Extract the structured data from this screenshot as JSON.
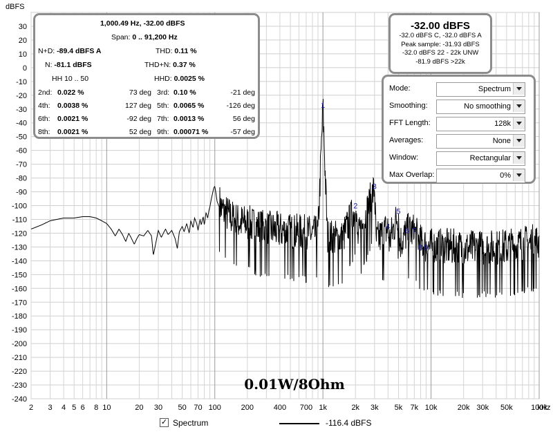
{
  "chart_data": {
    "type": "line",
    "ylabel": "dBFS",
    "xunit_label": "kHz",
    "xscale": "log",
    "xlim": [
      2,
      100000
    ],
    "ylim": [
      -240,
      40
    ],
    "yticks": [
      30,
      20,
      10,
      0,
      -10,
      -20,
      -30,
      -40,
      -50,
      -60,
      -70,
      -80,
      -90,
      -100,
      -110,
      -120,
      -130,
      -140,
      -150,
      -160,
      -170,
      -180,
      -190,
      -200,
      -210,
      -220,
      -230,
      -240
    ],
    "ytick_labels": [
      "30",
      "20",
      "10",
      "0",
      "-10",
      "-20",
      "-30",
      "-40",
      "-50",
      "-60",
      "-70",
      "-80",
      "-90",
      "-100",
      "-110",
      "-120",
      "-130",
      "-140",
      "-150",
      "-160",
      "-170",
      "-180",
      "-190",
      "-200",
      "-210",
      "-220",
      "-230",
      "-240"
    ],
    "xticks": [
      2,
      3,
      4,
      5,
      6,
      8,
      10,
      20,
      30,
      50,
      70,
      100,
      200,
      400,
      700,
      1000,
      2000,
      3000,
      5000,
      7000,
      10000,
      20000,
      30000,
      50000,
      100000
    ],
    "xtick_labels": [
      "2",
      "3",
      "4",
      "5",
      "6",
      "8",
      "10",
      "20",
      "30",
      "50",
      "70",
      "100",
      "200",
      "400",
      "700",
      "1k",
      "2k",
      "3k",
      "5k",
      "7k",
      "10k",
      "20k",
      "30k",
      "50k",
      "100k"
    ],
    "annotation": "0.01W/8Ohm",
    "grid": true,
    "series": [
      {
        "name": "Spectrum",
        "color": "#000000",
        "points": [
          [
            2,
            -117
          ],
          [
            2.5,
            -114
          ],
          [
            3,
            -111
          ],
          [
            4,
            -109
          ],
          [
            5,
            -109
          ],
          [
            6,
            -108
          ],
          [
            7,
            -108
          ],
          [
            8,
            -109
          ],
          [
            9,
            -111
          ],
          [
            10,
            -113
          ],
          [
            11,
            -117
          ],
          [
            12,
            -122
          ],
          [
            13,
            -117
          ],
          [
            14,
            -121
          ],
          [
            15,
            -126
          ],
          [
            16,
            -120
          ],
          [
            17,
            -124
          ],
          [
            18,
            -128
          ],
          [
            19,
            -124
          ],
          [
            20,
            -121
          ],
          [
            22,
            -122
          ],
          [
            24,
            -118
          ],
          [
            26,
            -122
          ],
          [
            27,
            -136
          ],
          [
            28,
            -130
          ],
          [
            30,
            -118
          ],
          [
            32,
            -123
          ],
          [
            35,
            -117
          ],
          [
            37,
            -121
          ],
          [
            40,
            -118
          ],
          [
            43,
            -124
          ],
          [
            45,
            -131
          ],
          [
            47,
            -119
          ],
          [
            50,
            -115
          ],
          [
            52,
            -119
          ],
          [
            55,
            -113
          ],
          [
            58,
            -120
          ],
          [
            60,
            -111
          ],
          [
            63,
            -116
          ],
          [
            65,
            -109
          ],
          [
            68,
            -113
          ],
          [
            70,
            -118
          ],
          [
            73,
            -110
          ],
          [
            75,
            -114
          ],
          [
            78,
            -108
          ],
          [
            80,
            -114
          ],
          [
            83,
            -105
          ],
          [
            86,
            -109
          ],
          [
            88,
            -104
          ],
          [
            90,
            -101
          ],
          [
            93,
            -95
          ],
          [
            96,
            -90
          ],
          [
            98,
            -87
          ],
          [
            100,
            -86
          ],
          [
            102,
            -90
          ],
          [
            105,
            -97
          ],
          [
            110,
            -101
          ],
          [
            115,
            -106
          ],
          [
            120,
            -108
          ],
          [
            130,
            -110
          ],
          [
            140,
            -112
          ],
          [
            150,
            -114
          ],
          [
            170,
            -116
          ],
          [
            200,
            -117
          ],
          [
            250,
            -119
          ],
          [
            300,
            -121
          ],
          [
            400,
            -122
          ],
          [
            500,
            -123
          ],
          [
            700,
            -124
          ],
          [
            900,
            -125
          ],
          [
            1000,
            -32
          ],
          [
            1100,
            -127
          ],
          [
            1500,
            -128
          ],
          [
            2000,
            -106
          ],
          [
            2100,
            -129
          ],
          [
            3000,
            -91
          ],
          [
            3100,
            -130
          ],
          [
            4000,
            -120
          ],
          [
            4100,
            -130
          ],
          [
            5000,
            -109
          ],
          [
            5100,
            -131
          ],
          [
            6000,
            -123
          ],
          [
            7000,
            -123
          ],
          [
            8000,
            -131
          ],
          [
            9000,
            -133
          ],
          [
            10000,
            -134
          ],
          [
            15000,
            -134
          ],
          [
            20000,
            -135
          ],
          [
            30000,
            -135
          ],
          [
            40000,
            -135
          ],
          [
            50000,
            -134
          ],
          [
            70000,
            -132
          ],
          [
            100000,
            -130
          ]
        ],
        "noise_from_hz": 110,
        "noise_depth_db": 28
      }
    ],
    "harmonic_markers": [
      {
        "label": "1",
        "x": 1000,
        "y": -29
      },
      {
        "label": "2",
        "x": 2000,
        "y": -102
      },
      {
        "label": "3",
        "x": 3000,
        "y": -88
      },
      {
        "label": "4",
        "x": 4000,
        "y": -117
      },
      {
        "label": "5",
        "x": 5000,
        "y": -106
      },
      {
        "label": "6",
        "x": 6000,
        "y": -120
      },
      {
        "label": "7",
        "x": 7000,
        "y": -120
      },
      {
        "label": "8",
        "x": 8000,
        "y": -132
      },
      {
        "label": "9",
        "x": 9000,
        "y": -132
      }
    ]
  },
  "stats_panel": {
    "line1": "1,000.49 Hz, -32.00 dBFS",
    "span_label": "Span:",
    "span_value": "0 .. 91,200 Hz",
    "nd_label": "N+D:",
    "nd_value": "-89.4 dBFS A",
    "thd_label": "THD:",
    "thd_value": "0.11 %",
    "n_label": "N:",
    "n_value": "-81.1 dBFS",
    "thdn_label": "THD+N:",
    "thdn_value": "0.37 %",
    "hh_label": "HH 10 .. 50",
    "hhd_label": "HHD:",
    "hhd_value": "0.0025 %",
    "harmonics": [
      {
        "label": "2nd:",
        "value": "0.022 %",
        "phase": "73 deg"
      },
      {
        "label": "3rd:",
        "value": "0.10 %",
        "phase": "-21 deg"
      },
      {
        "label": "4th:",
        "value": "0.0038 %",
        "phase": "127 deg"
      },
      {
        "label": "5th:",
        "value": "0.0065 %",
        "phase": "-126 deg"
      },
      {
        "label": "6th:",
        "value": "0.0021 %",
        "phase": "-92 deg"
      },
      {
        "label": "7th:",
        "value": "0.0013 %",
        "phase": "56 deg"
      },
      {
        "label": "8th:",
        "value": "0.0021 %",
        "phase": "52 deg"
      },
      {
        "label": "9th:",
        "value": "0.00071 %",
        "phase": "-57 deg"
      }
    ]
  },
  "peak_panel": {
    "main": "-32.00 dBFS",
    "line1": "-32.0 dBFS C, -32.0 dBFS A",
    "line2": "Peak sample: -31.93 dBFS",
    "line3": "-32.0 dBFS 22 - 22k UNW",
    "line4": "-81.9 dBFS >22k"
  },
  "settings": [
    {
      "label": "Mode:",
      "value": "Spectrum"
    },
    {
      "label": "Smoothing:",
      "value": "No  smoothing"
    },
    {
      "label": "FFT Length:",
      "value": "128k"
    },
    {
      "label": "Averages:",
      "value": "None"
    },
    {
      "label": "Window:",
      "value": "Rectangular"
    },
    {
      "label": "Max Overlap:",
      "value": "0%"
    }
  ],
  "legend": {
    "checkbox_label": "Spectrum",
    "checked_glyph": "✓",
    "value": "-116.4 dBFS"
  }
}
